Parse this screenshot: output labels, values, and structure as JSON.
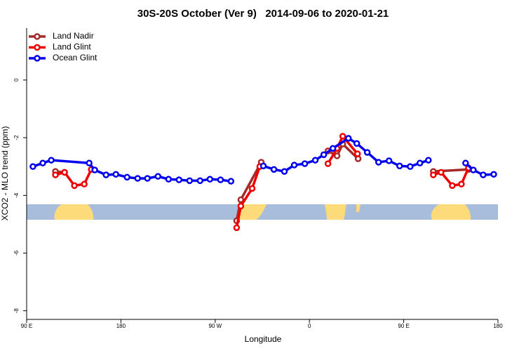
{
  "chart_data": {
    "type": "line",
    "title": "30S-20S October (Ver 9)   2014-09-06 to 2020-01-21",
    "xlabel": "Longitude",
    "ylabel": "XCO2 - MLO trend (ppm)",
    "xlim": [
      90,
      540
    ],
    "ylim": [
      -8.3,
      1.8
    ],
    "xticks": [
      {
        "value": 90,
        "label": "90 E"
      },
      {
        "value": 180,
        "label": "180"
      },
      {
        "value": 270,
        "label": "90 W"
      },
      {
        "value": 360,
        "label": "0"
      },
      {
        "value": 450,
        "label": "90 E"
      },
      {
        "value": 540,
        "label": "180"
      }
    ],
    "yticks": [
      0,
      -2,
      -4,
      -6,
      -8
    ],
    "legend": "top-left",
    "series": [
      {
        "name": "Land Nadir",
        "color": "#a52a2a",
        "x": [
          117.5,
          126.2,
          null,
          290.5,
          294.5,
          314.0,
          null,
          377.7,
          386.4,
          391.8,
          406.5,
          null,
          478.3,
          511.8
        ],
        "values": [
          -3.17,
          -3.2,
          null,
          -4.88,
          -4.15,
          -2.85,
          null,
          -2.46,
          -2.63,
          -2.22,
          -2.73,
          null,
          -3.17,
          -3.1
        ]
      },
      {
        "name": "Land Glint",
        "color": "#ee0000",
        "x": [
          117.5,
          126.2,
          135.6,
          145.0,
          151.7,
          null,
          290.5,
          294.5,
          305.3,
          312.6,
          null,
          377.7,
          386.4,
          391.8,
          405.9,
          null,
          478.3,
          485.7,
          496.4,
          505.1,
          511.8
        ],
        "values": [
          -3.29,
          -3.2,
          -3.66,
          -3.61,
          -3.1,
          null,
          -5.12,
          -4.37,
          -3.76,
          -3.0,
          null,
          -2.9,
          -2.37,
          -1.95,
          -2.56,
          null,
          -3.29,
          -3.2,
          -3.66,
          -3.61,
          -3.05
        ]
      },
      {
        "name": "Ocean Glint",
        "color": "#0000ee",
        "x": [
          96.0,
          105.4,
          113.5,
          149.7,
          155.0,
          165.8,
          175.2,
          185.9,
          196.0,
          205.3,
          215.4,
          225.5,
          235.5,
          245.6,
          255.6,
          265.0,
          275.1,
          285.1,
          null,
          316.0,
          326.1,
          336.1,
          345.5,
          355.6,
          365.6,
          373.7,
          382.4,
          397.2,
          405.2,
          415.2,
          426.0,
          436.0,
          446.1,
          456.2,
          465.5,
          473.6,
          null,
          509.1,
          516.5,
          525.9,
          536.0
        ],
        "values": [
          -3.0,
          -2.88,
          -2.78,
          -2.88,
          -3.12,
          -3.29,
          -3.27,
          -3.37,
          -3.41,
          -3.41,
          -3.34,
          -3.44,
          -3.46,
          -3.49,
          -3.49,
          -3.44,
          -3.46,
          -3.51,
          null,
          -2.98,
          -3.1,
          -3.17,
          -2.95,
          -2.9,
          -2.78,
          -2.59,
          -2.37,
          -2.02,
          -2.2,
          -2.51,
          -2.85,
          -2.8,
          -2.98,
          -3.0,
          -2.88,
          -2.78,
          null,
          -2.88,
          -3.12,
          -3.29,
          -3.27
        ]
      }
    ]
  }
}
